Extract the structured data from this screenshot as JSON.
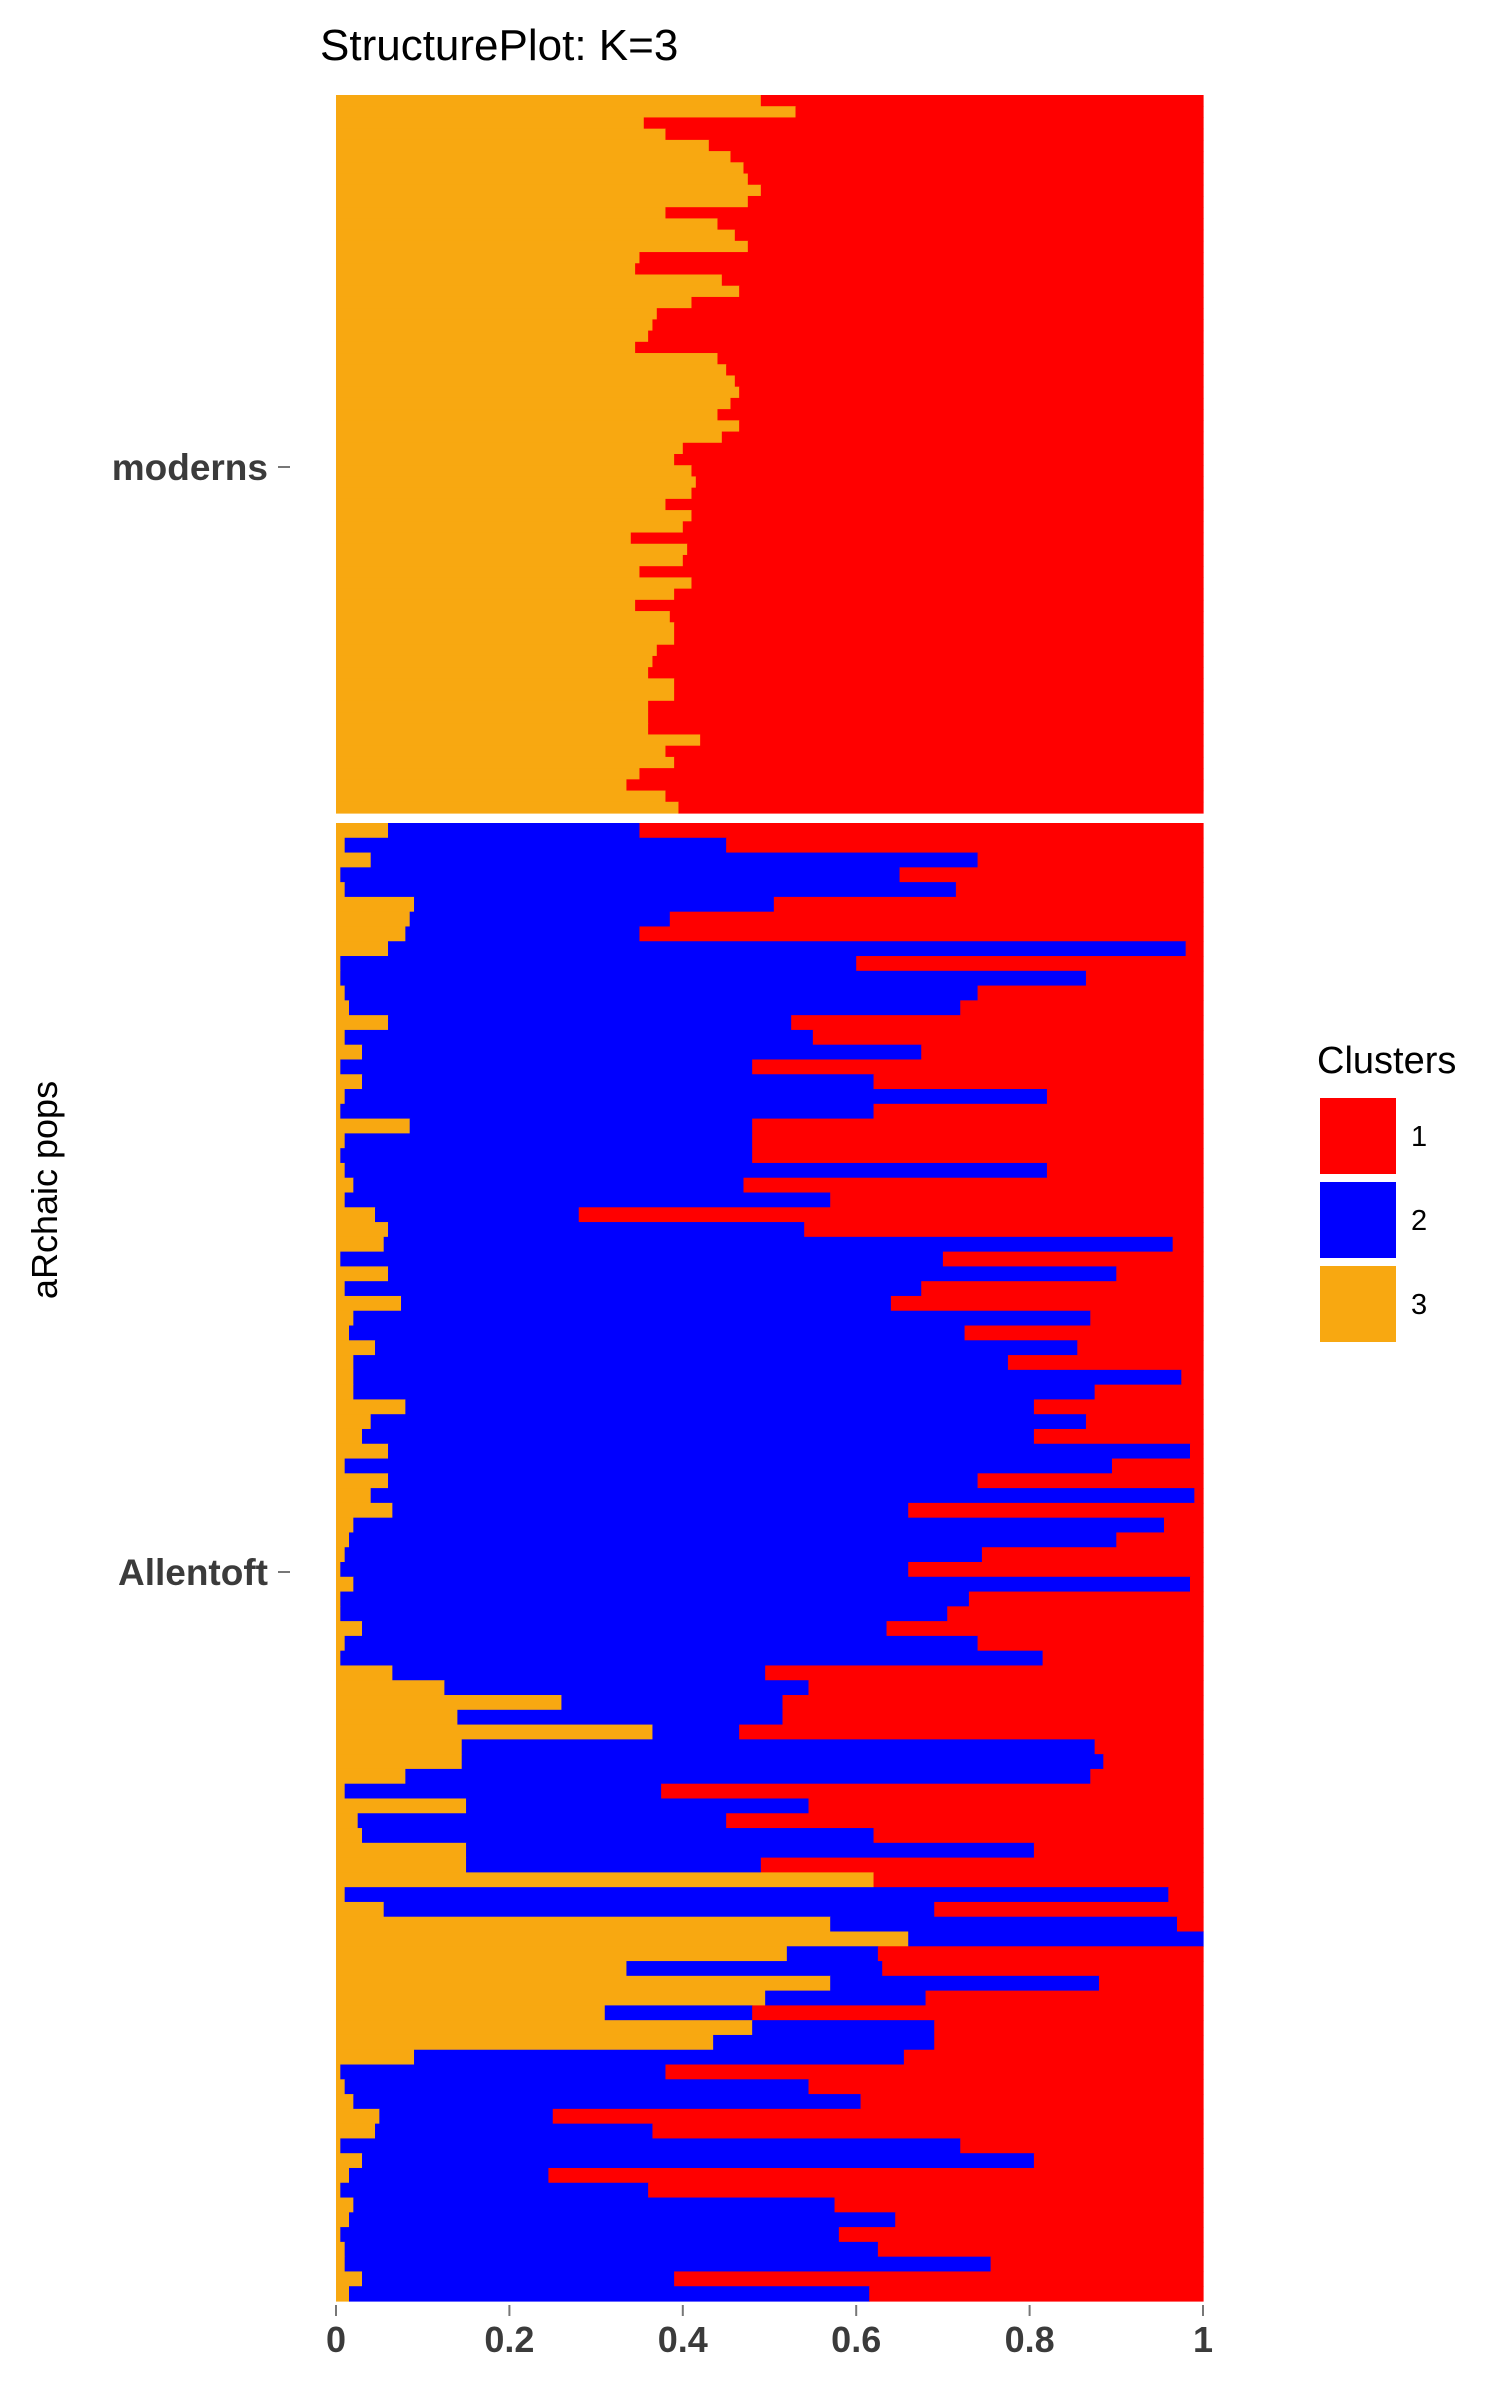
{
  "chart_data": {
    "type": "bar",
    "orientation": "horizontal-stacked",
    "title": "StructurePlot: K=3",
    "ylabel": "aRchaic pops",
    "xlabel": "",
    "xlim": [
      0,
      1
    ],
    "x_ticks": [
      "0",
      "0.2",
      "0.4",
      "0.6",
      "0.8",
      "1"
    ],
    "grid": false,
    "legend": {
      "title": "Clusters",
      "position": "right",
      "entries": [
        {
          "label": "1",
          "color": "#ff0000"
        },
        {
          "label": "2",
          "color": "#0000ff"
        },
        {
          "label": "3",
          "color": "#f8a811"
        }
      ]
    },
    "stack_order": [
      "3",
      "2",
      "1"
    ],
    "groups": [
      {
        "name": "moderns",
        "rows": [
          [
            0.49,
            0,
            0.51
          ],
          [
            0.53,
            0,
            0.47
          ],
          [
            0.355,
            0,
            0.645
          ],
          [
            0.38,
            0,
            0.62
          ],
          [
            0.43,
            0,
            0.57
          ],
          [
            0.455,
            0,
            0.545
          ],
          [
            0.47,
            0,
            0.53
          ],
          [
            0.475,
            0,
            0.525
          ],
          [
            0.49,
            0,
            0.51
          ],
          [
            0.475,
            0,
            0.525
          ],
          [
            0.38,
            0,
            0.62
          ],
          [
            0.44,
            0,
            0.56
          ],
          [
            0.46,
            0,
            0.54
          ],
          [
            0.475,
            0,
            0.525
          ],
          [
            0.35,
            0,
            0.65
          ],
          [
            0.345,
            0,
            0.655
          ],
          [
            0.445,
            0,
            0.555
          ],
          [
            0.465,
            0,
            0.535
          ],
          [
            0.41,
            0,
            0.59
          ],
          [
            0.37,
            0,
            0.63
          ],
          [
            0.365,
            0,
            0.635
          ],
          [
            0.36,
            0,
            0.64
          ],
          [
            0.345,
            0,
            0.655
          ],
          [
            0.44,
            0,
            0.56
          ],
          [
            0.45,
            0,
            0.55
          ],
          [
            0.46,
            0,
            0.54
          ],
          [
            0.465,
            0,
            0.535
          ],
          [
            0.455,
            0,
            0.545
          ],
          [
            0.44,
            0,
            0.56
          ],
          [
            0.465,
            0,
            0.535
          ],
          [
            0.445,
            0,
            0.555
          ],
          [
            0.4,
            0,
            0.6
          ],
          [
            0.39,
            0,
            0.61
          ],
          [
            0.41,
            0,
            0.59
          ],
          [
            0.415,
            0,
            0.585
          ],
          [
            0.41,
            0,
            0.59
          ],
          [
            0.38,
            0,
            0.62
          ],
          [
            0.41,
            0,
            0.59
          ],
          [
            0.4,
            0,
            0.6
          ],
          [
            0.34,
            0,
            0.66
          ],
          [
            0.405,
            0,
            0.595
          ],
          [
            0.4,
            0,
            0.6
          ],
          [
            0.35,
            0,
            0.65
          ],
          [
            0.41,
            0,
            0.59
          ],
          [
            0.39,
            0,
            0.61
          ],
          [
            0.345,
            0,
            0.655
          ],
          [
            0.385,
            0,
            0.615
          ],
          [
            0.39,
            0,
            0.61
          ],
          [
            0.39,
            0,
            0.61
          ],
          [
            0.37,
            0,
            0.63
          ],
          [
            0.365,
            0,
            0.635
          ],
          [
            0.36,
            0,
            0.64
          ],
          [
            0.39,
            0,
            0.61
          ],
          [
            0.39,
            0,
            0.61
          ],
          [
            0.36,
            0,
            0.64
          ],
          [
            0.36,
            0,
            0.64
          ],
          [
            0.36,
            0,
            0.64
          ],
          [
            0.42,
            0,
            0.58
          ],
          [
            0.38,
            0,
            0.62
          ],
          [
            0.39,
            0,
            0.61
          ],
          [
            0.35,
            0,
            0.65
          ],
          [
            0.335,
            0,
            0.665
          ],
          [
            0.38,
            0,
            0.62
          ],
          [
            0.395,
            0,
            0.605
          ]
        ]
      },
      {
        "name": "Allentoft",
        "rows": [
          [
            0.06,
            0.29,
            0.65
          ],
          [
            0.01,
            0.44,
            0.55
          ],
          [
            0.04,
            0.7,
            0.26
          ],
          [
            0.005,
            0.645,
            0.35
          ],
          [
            0.01,
            0.705,
            0.285
          ],
          [
            0.09,
            0.415,
            0.495
          ],
          [
            0.085,
            0.3,
            0.615
          ],
          [
            0.08,
            0.27,
            0.65
          ],
          [
            0.06,
            0.92,
            0.02
          ],
          [
            0.005,
            0.595,
            0.4
          ],
          [
            0.005,
            0.86,
            0.135
          ],
          [
            0.01,
            0.73,
            0.26
          ],
          [
            0.015,
            0.705,
            0.28
          ],
          [
            0.06,
            0.465,
            0.475
          ],
          [
            0.01,
            0.54,
            0.45
          ],
          [
            0.03,
            0.645,
            0.325
          ],
          [
            0.005,
            0.475,
            0.52
          ],
          [
            0.03,
            0.59,
            0.38
          ],
          [
            0.01,
            0.81,
            0.18
          ],
          [
            0.005,
            0.615,
            0.38
          ],
          [
            0.085,
            0.395,
            0.52
          ],
          [
            0.01,
            0.47,
            0.52
          ],
          [
            0.005,
            0.475,
            0.52
          ],
          [
            0.01,
            0.81,
            0.18
          ],
          [
            0.02,
            0.45,
            0.53
          ],
          [
            0.01,
            0.56,
            0.43
          ],
          [
            0.045,
            0.235,
            0.72
          ],
          [
            0.06,
            0.48,
            0.46
          ],
          [
            0.055,
            0.91,
            0.035
          ],
          [
            0.005,
            0.695,
            0.3
          ],
          [
            0.06,
            0.84,
            0.1
          ],
          [
            0.01,
            0.665,
            0.325
          ],
          [
            0.075,
            0.565,
            0.36
          ],
          [
            0.02,
            0.85,
            0.13
          ],
          [
            0.015,
            0.71,
            0.275
          ],
          [
            0.045,
            0.81,
            0.145
          ],
          [
            0.02,
            0.755,
            0.225
          ],
          [
            0.02,
            0.955,
            0.025
          ],
          [
            0.02,
            0.855,
            0.125
          ],
          [
            0.08,
            0.725,
            0.195
          ],
          [
            0.04,
            0.825,
            0.135
          ],
          [
            0.03,
            0.775,
            0.195
          ],
          [
            0.06,
            0.925,
            0.015
          ],
          [
            0.01,
            0.885,
            0.105
          ],
          [
            0.06,
            0.68,
            0.26
          ],
          [
            0.04,
            0.95,
            0.01
          ],
          [
            0.065,
            0.595,
            0.34
          ],
          [
            0.02,
            0.935,
            0.045
          ],
          [
            0.015,
            0.885,
            0.1
          ],
          [
            0.01,
            0.735,
            0.255
          ],
          [
            0.005,
            0.655,
            0.34
          ],
          [
            0.02,
            0.965,
            0.015
          ],
          [
            0.005,
            0.725,
            0.27
          ],
          [
            0.005,
            0.7,
            0.295
          ],
          [
            0.03,
            0.605,
            0.365
          ],
          [
            0.01,
            0.73,
            0.26
          ],
          [
            0.005,
            0.81,
            0.185
          ],
          [
            0.065,
            0.43,
            0.505
          ],
          [
            0.125,
            0.42,
            0.455
          ],
          [
            0.26,
            0.255,
            0.485
          ],
          [
            0.14,
            0.375,
            0.485
          ],
          [
            0.365,
            0.1,
            0.535
          ],
          [
            0.145,
            0.73,
            0.125
          ],
          [
            0.145,
            0.74,
            0.115
          ],
          [
            0.08,
            0.79,
            0.13
          ],
          [
            0.01,
            0.365,
            0.625
          ],
          [
            0.15,
            0.395,
            0.455
          ],
          [
            0.025,
            0.425,
            0.55
          ],
          [
            0.03,
            0.59,
            0.38
          ],
          [
            0.15,
            0.655,
            0.195
          ],
          [
            0.15,
            0.34,
            0.51
          ],
          [
            0.62,
            0,
            0.38
          ],
          [
            0.01,
            0.95,
            0.04
          ],
          [
            0.055,
            0.635,
            0.31
          ],
          [
            0.57,
            0.4,
            0.03
          ],
          [
            0.66,
            0.34,
            0
          ],
          [
            0.52,
            0.105,
            0.375
          ],
          [
            0.335,
            0.295,
            0.37
          ],
          [
            0.57,
            0.31,
            0.12
          ],
          [
            0.495,
            0.185,
            0.32
          ],
          [
            0.31,
            0.17,
            0.52
          ],
          [
            0.48,
            0.21,
            0.31
          ],
          [
            0.435,
            0.255,
            0.31
          ],
          [
            0.09,
            0.565,
            0.345
          ],
          [
            0.005,
            0.375,
            0.62
          ],
          [
            0.01,
            0.535,
            0.455
          ],
          [
            0.02,
            0.585,
            0.395
          ],
          [
            0.05,
            0.2,
            0.75
          ],
          [
            0.045,
            0.32,
            0.635
          ],
          [
            0.005,
            0.715,
            0.28
          ],
          [
            0.03,
            0.775,
            0.195
          ],
          [
            0.015,
            0.23,
            0.755
          ],
          [
            0.005,
            0.355,
            0.64
          ],
          [
            0.02,
            0.555,
            0.425
          ],
          [
            0.015,
            0.63,
            0.355
          ],
          [
            0.005,
            0.575,
            0.42
          ],
          [
            0.01,
            0.615,
            0.375
          ],
          [
            0.01,
            0.745,
            0.245
          ],
          [
            0.03,
            0.36,
            0.61
          ],
          [
            0.015,
            0.6,
            0.385
          ]
        ]
      }
    ]
  }
}
